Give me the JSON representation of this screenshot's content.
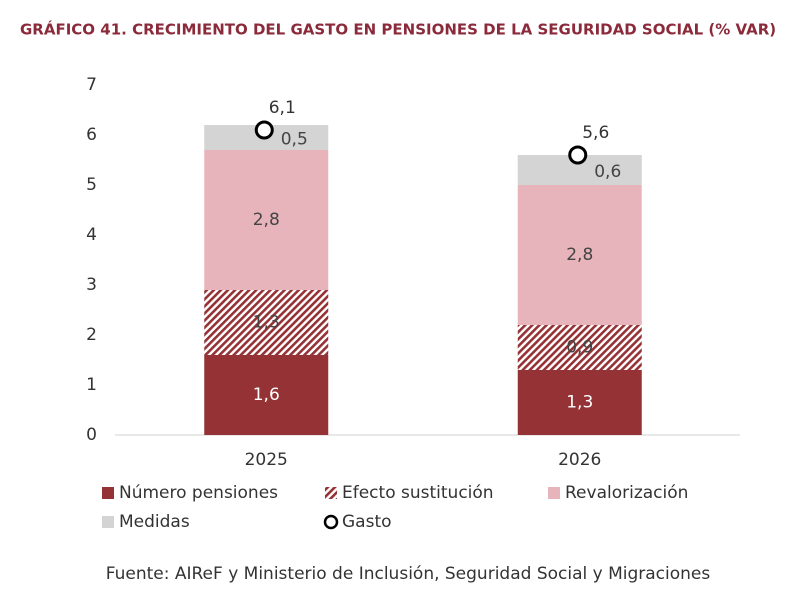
{
  "chart_data": {
    "type": "bar",
    "stacked": true,
    "title": "GRÁFICO 41.  CRECIMIENTO DEL GASTO EN PENSIONES DE LA SEGURIDAD SOCIAL (% VAR)",
    "categories": [
      "2025",
      "2026"
    ],
    "series": [
      {
        "name": "Número pensiones",
        "color": "#943236",
        "values": [
          1.6,
          1.3
        ],
        "value_labels": [
          "1,6",
          "1,3"
        ]
      },
      {
        "name": "Efecto sustitución",
        "color": "#943236",
        "pattern": "hatch",
        "values": [
          1.3,
          0.9
        ],
        "value_labels": [
          "1,3",
          "0,9"
        ]
      },
      {
        "name": "Revalorización",
        "color": "#e8b4bb",
        "values": [
          2.8,
          2.8
        ],
        "value_labels": [
          "2,8",
          "2,8"
        ]
      },
      {
        "name": "Medidas",
        "color": "#d4d4d4",
        "values": [
          0.5,
          0.6
        ],
        "value_labels": [
          "0,5",
          "0,6"
        ]
      },
      {
        "name": "Gasto",
        "type": "scatter",
        "color": "#000000",
        "values": [
          6.1,
          5.6
        ],
        "value_labels": [
          "6,1",
          "5,6"
        ]
      }
    ],
    "ylim": [
      0,
      7
    ],
    "yticks": [
      0,
      1,
      2,
      3,
      4,
      5,
      6,
      7
    ],
    "grid": false,
    "source": "Fuente: AIReF y Ministerio de Inclusión, Seguridad Social y Migraciones"
  }
}
